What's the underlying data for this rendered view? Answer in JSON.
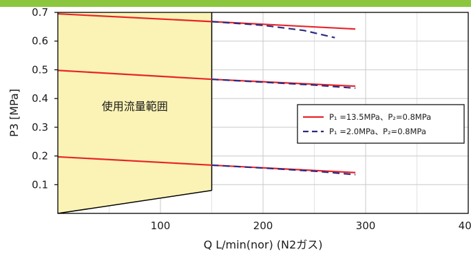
{
  "chart_data": {
    "type": "line",
    "xlabel": "Q L/min(nor) (N2ガス)",
    "ylabel": "P3 [MPa]",
    "xlim": [
      0,
      400
    ],
    "ylim": [
      0,
      0.7
    ],
    "x_ticks": [
      "100",
      "200",
      "300",
      "400"
    ],
    "y_ticks": [
      "0.1",
      "0.2",
      "0.3",
      "0.4",
      "0.5",
      "0.6",
      "0.7"
    ],
    "x_tick_values": [
      100,
      200,
      300,
      400
    ],
    "y_tick_values": [
      0.1,
      0.2,
      0.3,
      0.4,
      0.5,
      0.6,
      0.7
    ],
    "grid": true,
    "legend_position": "right",
    "region": {
      "label": "使用流量範囲",
      "color": "#fbf3b5",
      "polygon": [
        [
          0,
          0.7
        ],
        [
          150,
          0.7
        ],
        [
          150,
          0.08
        ],
        [
          0,
          0.0
        ]
      ]
    },
    "series": [
      {
        "name": "P₁ =13.5MPa、P₂=0.8MPa",
        "color": "#e8232a",
        "style": "solid",
        "lines": [
          [
            [
              0,
              0.695
            ],
            [
              150,
              0.668
            ],
            [
              290,
              0.642
            ]
          ],
          [
            [
              0,
              0.498
            ],
            [
              150,
              0.467
            ],
            [
              290,
              0.443
            ]
          ],
          [
            [
              0,
              0.197
            ],
            [
              150,
              0.168
            ],
            [
              290,
              0.142
            ]
          ]
        ]
      },
      {
        "name": "P₁ =2.0MPa、P₂=0.8MPa",
        "color": "#2b2a7f",
        "style": "dashed",
        "lines": [
          [
            [
              150,
              0.668
            ],
            [
              200,
              0.655
            ],
            [
              240,
              0.637
            ],
            [
              270,
              0.612
            ]
          ],
          [
            [
              150,
              0.467
            ],
            [
              200,
              0.457
            ],
            [
              250,
              0.447
            ],
            [
              290,
              0.436
            ]
          ],
          [
            [
              150,
              0.168
            ],
            [
              200,
              0.158
            ],
            [
              250,
              0.147
            ],
            [
              290,
              0.135
            ]
          ]
        ]
      }
    ],
    "legend": [
      {
        "label": "P₁ =13.5MPa、P₂=0.8MPa",
        "color": "#e8232a",
        "style": "solid"
      },
      {
        "label": "P₁ =2.0MPa、P₂=0.8MPa",
        "color": "#2b2a7f",
        "style": "dashed"
      }
    ]
  },
  "header_bar_color": "#8cc63f"
}
